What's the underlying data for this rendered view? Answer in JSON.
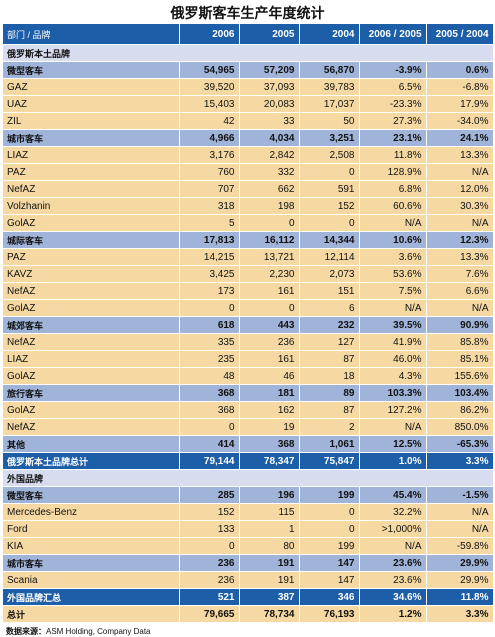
{
  "title": "俄罗斯客车生产年度统计",
  "header": [
    "部门 / 品牌",
    "2006",
    "2005",
    "2004",
    "2006 / 2005",
    "2005 / 2004"
  ],
  "rows": [
    {
      "type": "section",
      "cells": [
        "俄罗斯本土品牌",
        "",
        "",
        "",
        "",
        ""
      ]
    },
    {
      "type": "group",
      "cells": [
        "微型客车",
        "54,965",
        "57,209",
        "56,870",
        "-3.9%",
        "0.6%"
      ]
    },
    {
      "type": "item",
      "cells": [
        "GAZ",
        "39,520",
        "37,093",
        "39,783",
        "6.5%",
        "-6.8%"
      ]
    },
    {
      "type": "item",
      "cells": [
        "UAZ",
        "15,403",
        "20,083",
        "17,037",
        "-23.3%",
        "17.9%"
      ]
    },
    {
      "type": "item",
      "cells": [
        "ZIL",
        "42",
        "33",
        "50",
        "27.3%",
        "-34.0%"
      ]
    },
    {
      "type": "group",
      "cells": [
        "城市客车",
        "4,966",
        "4,034",
        "3,251",
        "23.1%",
        "24.1%"
      ]
    },
    {
      "type": "item",
      "cells": [
        "LIAZ",
        "3,176",
        "2,842",
        "2,508",
        "11.8%",
        "13.3%"
      ]
    },
    {
      "type": "item",
      "cells": [
        "PAZ",
        "760",
        "332",
        "0",
        "128.9%",
        "N/A"
      ]
    },
    {
      "type": "item",
      "cells": [
        "NefAZ",
        "707",
        "662",
        "591",
        "6.8%",
        "12.0%"
      ]
    },
    {
      "type": "item",
      "cells": [
        "Volzhanin",
        "318",
        "198",
        "152",
        "60.6%",
        "30.3%"
      ]
    },
    {
      "type": "item",
      "cells": [
        "GolAZ",
        "5",
        "0",
        "0",
        "N/A",
        "N/A"
      ]
    },
    {
      "type": "group",
      "cells": [
        "城际客车",
        "17,813",
        "16,112",
        "14,344",
        "10.6%",
        "12.3%"
      ]
    },
    {
      "type": "item",
      "cells": [
        "PAZ",
        "14,215",
        "13,721",
        "12,114",
        "3.6%",
        "13.3%"
      ]
    },
    {
      "type": "item",
      "cells": [
        "KAVZ",
        "3,425",
        "2,230",
        "2,073",
        "53.6%",
        "7.6%"
      ]
    },
    {
      "type": "item",
      "cells": [
        "NefAZ",
        "173",
        "161",
        "151",
        "7.5%",
        "6.6%"
      ]
    },
    {
      "type": "item",
      "cells": [
        "GolAZ",
        "0",
        "0",
        "6",
        "N/A",
        "N/A"
      ]
    },
    {
      "type": "group",
      "cells": [
        "城郊客车",
        "618",
        "443",
        "232",
        "39.5%",
        "90.9%"
      ]
    },
    {
      "type": "item",
      "cells": [
        "NefAZ",
        "335",
        "236",
        "127",
        "41.9%",
        "85.8%"
      ]
    },
    {
      "type": "item",
      "cells": [
        "LIAZ",
        "235",
        "161",
        "87",
        "46.0%",
        "85.1%"
      ]
    },
    {
      "type": "item",
      "cells": [
        "GolAZ",
        "48",
        "46",
        "18",
        "4.3%",
        "155.6%"
      ]
    },
    {
      "type": "group",
      "cells": [
        "旅行客车",
        "368",
        "181",
        "89",
        "103.3%",
        "103.4%"
      ]
    },
    {
      "type": "item",
      "cells": [
        "GolAZ",
        "368",
        "162",
        "87",
        "127.2%",
        "86.2%"
      ]
    },
    {
      "type": "item",
      "cells": [
        "NefAZ",
        "0",
        "19",
        "2",
        "N/A",
        "850.0%"
      ]
    },
    {
      "type": "group",
      "cells": [
        "其他",
        "414",
        "368",
        "1,061",
        "12.5%",
        "-65.3%"
      ]
    },
    {
      "type": "subtotal",
      "cells": [
        "俄罗斯本土品牌总计",
        "79,144",
        "78,347",
        "75,847",
        "1.0%",
        "3.3%"
      ]
    },
    {
      "type": "section",
      "cells": [
        "外国品牌",
        "",
        "",
        "",
        "",
        ""
      ]
    },
    {
      "type": "group",
      "cells": [
        "微型客车",
        "285",
        "196",
        "199",
        "45.4%",
        "-1.5%"
      ]
    },
    {
      "type": "item",
      "cells": [
        "Mercedes-Benz",
        "152",
        "115",
        "0",
        "32.2%",
        "N/A"
      ]
    },
    {
      "type": "item",
      "cells": [
        "Ford",
        "133",
        "1",
        "0",
        ">1,000%",
        "N/A"
      ]
    },
    {
      "type": "item",
      "cells": [
        "KIA",
        "0",
        "80",
        "199",
        "N/A",
        "-59.8%"
      ]
    },
    {
      "type": "group",
      "cells": [
        "城市客车",
        "236",
        "191",
        "147",
        "23.6%",
        "29.9%"
      ]
    },
    {
      "type": "item",
      "cells": [
        "Scania",
        "236",
        "191",
        "147",
        "23.6%",
        "29.9%"
      ]
    },
    {
      "type": "subtotal",
      "cells": [
        "外国品牌汇总",
        "521",
        "387",
        "346",
        "34.6%",
        "11.8%"
      ]
    },
    {
      "type": "total",
      "cells": [
        "总计",
        "79,665",
        "78,734",
        "76,193",
        "1.2%",
        "3.3%"
      ]
    }
  ],
  "source": {
    "label": "数据来源：",
    "text": "ASM Holding, Company Data"
  }
}
